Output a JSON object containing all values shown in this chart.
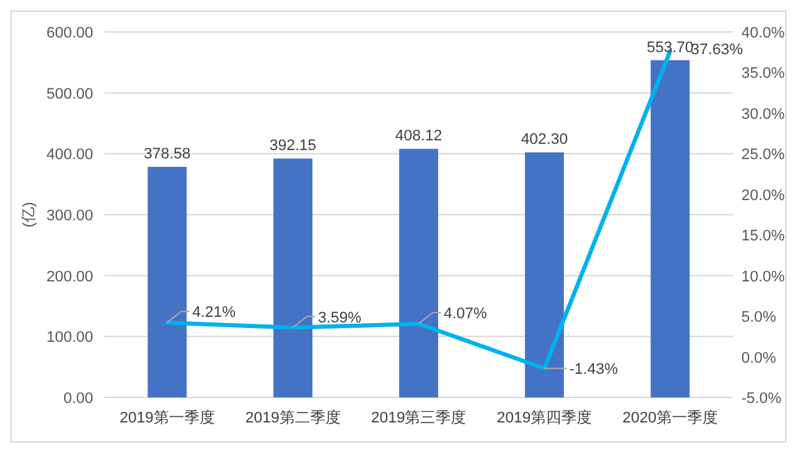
{
  "chart_data": {
    "type": "bar",
    "ylabel": "(亿)",
    "categories": [
      "2019第一季度",
      "2019第二季度",
      "2019第三季度",
      "2019第四季度",
      "2020第一季度"
    ],
    "series": [
      {
        "color": "#4472c4",
        "values": [
          378.58,
          392.15,
          408.12,
          402.3,
          553.7
        ],
        "value_labels": [
          "378.58",
          "392.15",
          "408.12",
          "402.30",
          "553.70"
        ]
      },
      {
        "type": "line",
        "axis": "y2",
        "color": "#00b0f0",
        "values": [
          4.21,
          3.59,
          4.07,
          -1.43,
          37.63
        ],
        "value_labels": [
          "4.21%",
          "3.59%",
          "4.07%",
          "-1.43%",
          "37.63%"
        ]
      }
    ],
    "ylim": [
      0,
      600
    ],
    "yticks": [
      {
        "value": 0,
        "label": "0.00"
      },
      {
        "value": 100,
        "label": "100.00"
      },
      {
        "value": 200,
        "label": "200.00"
      },
      {
        "value": 300,
        "label": "300.00"
      },
      {
        "value": 400,
        "label": "400.00"
      },
      {
        "value": 500,
        "label": "500.00"
      },
      {
        "value": 600,
        "label": "600.00"
      }
    ],
    "y2lim": [
      -5,
      40
    ],
    "y2ticks": [
      {
        "value": -5,
        "label": "-5.0%"
      },
      {
        "value": 0,
        "label": "0.0%"
      },
      {
        "value": 5,
        "label": "5.0%"
      },
      {
        "value": 10,
        "label": "10.0%"
      },
      {
        "value": 15,
        "label": "15.0%"
      },
      {
        "value": 20,
        "label": "20.0%"
      },
      {
        "value": 25,
        "label": "25.0%"
      },
      {
        "value": 30,
        "label": "30.0%"
      },
      {
        "value": 35,
        "label": "35.0%"
      },
      {
        "value": 40,
        "label": "40.0%"
      }
    ],
    "grid": "y",
    "marker": "none",
    "line_style": "solid"
  }
}
